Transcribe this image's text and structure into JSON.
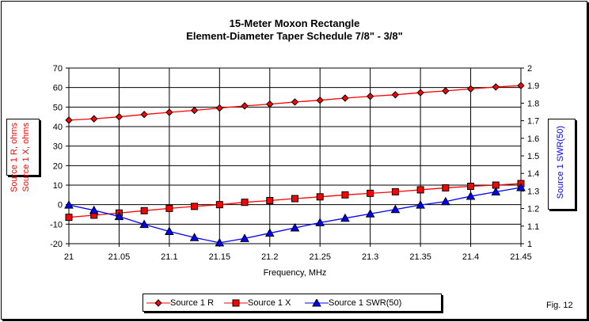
{
  "chart_data": {
    "type": "line",
    "title": "15-Meter Moxon Rectangle",
    "subtitle": "Element-Diameter Taper Schedule 7/8\" - 3/8\"",
    "xlabel": "Frequency, MHz",
    "ylabel_left": [
      "Source 1 R, ohms",
      "Source 1 X, ohms"
    ],
    "ylabel_right": "Source 1 SWR(50)",
    "xlim": [
      21,
      21.45
    ],
    "ylim_left": [
      -20,
      70
    ],
    "ylim_right": [
      1,
      2
    ],
    "x_ticks": [
      "21",
      "21.05",
      "21.1",
      "21.15",
      "21.2",
      "21.25",
      "21.3",
      "21.35",
      "21.4",
      "21.45"
    ],
    "y_ticks_left": [
      "70",
      "60",
      "50",
      "40",
      "30",
      "20",
      "10",
      "0",
      "-10",
      "-20"
    ],
    "y_ticks_right": [
      "2",
      "1.9",
      "1.8",
      "1.7",
      "1.6",
      "1.5",
      "1.4",
      "1.3",
      "1.2",
      "1.1",
      "1"
    ],
    "grid": true,
    "legend_position": "bottom",
    "x": [
      21,
      21.025,
      21.05,
      21.075,
      21.1,
      21.125,
      21.15,
      21.175,
      21.2,
      21.225,
      21.25,
      21.275,
      21.3,
      21.325,
      21.35,
      21.375,
      21.4,
      21.425,
      21.45
    ],
    "series": [
      {
        "name": "Source 1 R",
        "axis": "left",
        "color": "#ff0000",
        "marker": "diamond",
        "values": [
          43.3,
          44,
          45,
          46.2,
          47.3,
          48.3,
          49.5,
          50.6,
          51.5,
          52.6,
          53.5,
          54.6,
          55.5,
          56.3,
          57.4,
          58.3,
          59.3,
          60.3,
          61
        ]
      },
      {
        "name": "Source 1 X",
        "axis": "left",
        "color": "#ff0000",
        "marker": "square",
        "values": [
          -6.5,
          -5.4,
          -4.3,
          -3.1,
          -1.9,
          -0.9,
          0,
          1.2,
          2.1,
          3.1,
          4,
          5,
          5.8,
          6.6,
          7.6,
          8.6,
          9.4,
          10,
          10.8
        ]
      },
      {
        "name": "Source 1 SWR(50)",
        "axis": "right",
        "color": "#0000ff",
        "marker": "triangle",
        "values": [
          1.22,
          1.19,
          1.155,
          1.11,
          1.07,
          1.035,
          1.005,
          1.03,
          1.06,
          1.09,
          1.12,
          1.145,
          1.17,
          1.195,
          1.22,
          1.24,
          1.27,
          1.295,
          1.32
        ]
      }
    ]
  },
  "figure_label": "Fig. 12"
}
